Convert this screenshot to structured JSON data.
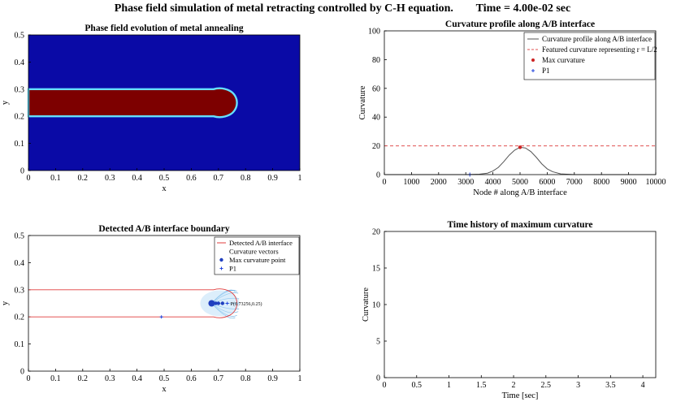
{
  "figure": {
    "title": "Phase field simulation of metal retracting controlled by C-H equation.        Time = 4.00e-02 sec"
  },
  "chart_data": [
    {
      "type": "heatmap",
      "title": "Phase field evolution of metal annealing",
      "xlabel": "x",
      "ylabel": "y",
      "xlim": [
        0,
        1
      ],
      "ylim": [
        0,
        0.5
      ],
      "xticks": [
        "0",
        "0.1",
        "0.2",
        "0.3",
        "0.4",
        "0.5",
        "0.6",
        "0.7",
        "0.8",
        "0.9",
        "1"
      ],
      "yticks": [
        "0",
        "0.1",
        "0.2",
        "0.3",
        "0.4",
        "0.5"
      ],
      "background_color": "#0a0aa6",
      "metal_color": "#7d0000",
      "interface_color": "#66e0ff",
      "metal_region": {
        "x_start": 0,
        "x_end": 0.75,
        "y_bottom": 0.2,
        "y_top": 0.3
      }
    },
    {
      "type": "line",
      "title": "Curvature profile along A/B interface",
      "xlabel": "Node # along A/B interface",
      "ylabel": "Curvature",
      "xlim": [
        0,
        10000
      ],
      "ylim": [
        0,
        100
      ],
      "xticks": [
        "0",
        "1000",
        "2000",
        "3000",
        "4000",
        "5000",
        "6000",
        "7000",
        "8000",
        "9000",
        "10000"
      ],
      "yticks": [
        "0",
        "20",
        "40",
        "60",
        "80",
        "100"
      ],
      "legend_position": "top-right",
      "series": [
        {
          "name": "Curvature profile along A/B interface",
          "color": "#555555",
          "x": [
            0,
            3000,
            3500,
            3800,
            4000,
            4200,
            4400,
            4600,
            4800,
            5000,
            5200,
            5400,
            5600,
            5800,
            6000,
            6200,
            6500,
            7000,
            10000
          ],
          "y": [
            0,
            0,
            0.3,
            1,
            2.5,
            5,
            9,
            13.5,
            17,
            19,
            18.5,
            16,
            12,
            7.5,
            4,
            2,
            0.5,
            0,
            0
          ]
        },
        {
          "name": "Featured curvature representing r = L/2",
          "color": "#e05050",
          "style": "dashed",
          "value": 20
        },
        {
          "name": "Max curvature",
          "color": "#cc2222",
          "marker": "dot",
          "points": [
            [
              5000,
              19
            ]
          ]
        },
        {
          "name": "P1",
          "color": "#2244dd",
          "marker": "plus",
          "points": [
            [
              3150,
              0
            ]
          ]
        }
      ]
    },
    {
      "type": "line",
      "title": "Detected A/B interface boundary",
      "xlabel": "x",
      "ylabel": "y",
      "xlim": [
        0,
        1
      ],
      "ylim": [
        0,
        0.5
      ],
      "xticks": [
        "0",
        "0.1",
        "0.2",
        "0.3",
        "0.4",
        "0.5",
        "0.6",
        "0.7",
        "0.8",
        "0.9",
        "1"
      ],
      "yticks": [
        "0",
        "0.1",
        "0.2",
        "0.3",
        "0.4",
        "0.5"
      ],
      "legend_position": "top-right",
      "series": [
        {
          "name": "Detected A/B interface",
          "color": "#e03c3c",
          "x_start": 0,
          "x_end": 0.75,
          "y_bottom": 0.2,
          "y_top": 0.3
        },
        {
          "name": "Curvature vectors",
          "color": "#4aa0e0"
        },
        {
          "name": "Max curvature point",
          "color": "#1f3fbf",
          "marker": "dot",
          "points": [
            [
              0.675,
              0.25
            ]
          ]
        },
        {
          "name": "P1",
          "color": "#2244dd",
          "marker": "plus",
          "points": [
            [
              0.49,
              0.2
            ]
          ]
        }
      ],
      "annotation": {
        "text": "P(0.73256,0.25)",
        "x": 0.73256,
        "y": 0.25
      }
    },
    {
      "type": "line",
      "title": "Time history of maximum curvature",
      "xlabel": "Time [sec]",
      "ylabel": "Curvature",
      "xlim": [
        0,
        4.2
      ],
      "ylim": [
        0,
        20
      ],
      "xticks": [
        "0",
        "0.5",
        "1",
        "1.5",
        "2",
        "2.5",
        "3",
        "3.5",
        "4"
      ],
      "yticks": [
        "0",
        "5",
        "10",
        "15",
        "20"
      ],
      "series": []
    }
  ]
}
